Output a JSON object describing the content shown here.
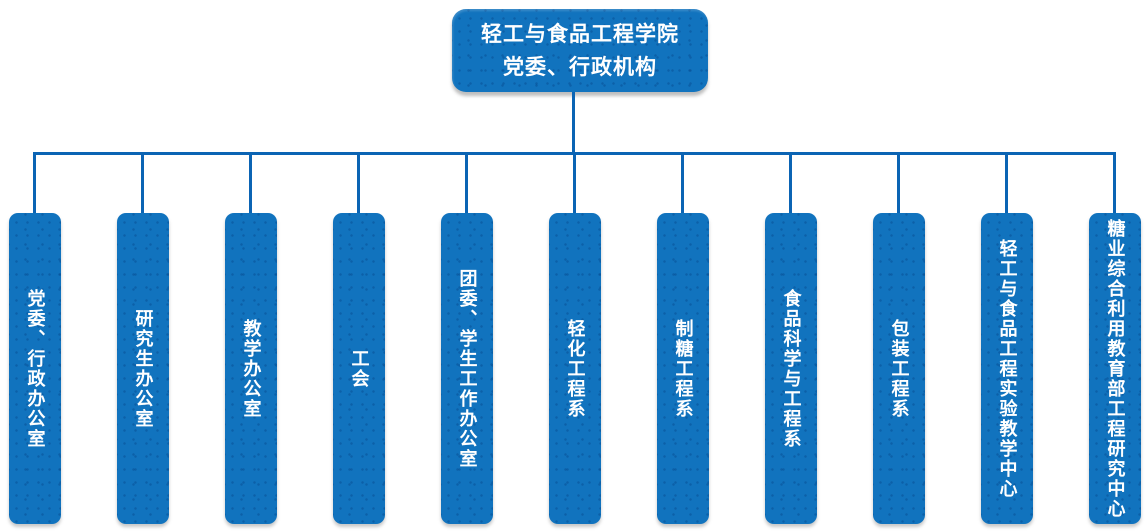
{
  "root": {
    "title_line1": "轻工与食品工程学院",
    "title_line2": "党委、行政机构"
  },
  "departments": [
    {
      "label": "党委、行政办公室"
    },
    {
      "label": "研究生办公室"
    },
    {
      "label": "教学办公室"
    },
    {
      "label": "工会"
    },
    {
      "label": "团委、学生工作办公室"
    },
    {
      "label": "轻化工程系"
    },
    {
      "label": "制糖工程系"
    },
    {
      "label": "食品科学与工程系"
    },
    {
      "label": "包装工程系"
    },
    {
      "label": "轻工与食品工程实验教学中心"
    },
    {
      "label": "糖业综合利用教育部工程研究中心"
    }
  ],
  "colors": {
    "box_fill": "#1173BE",
    "box_dot_overlay": "rgba(7,77,145,0.5)",
    "connector_line": "#0B64B4",
    "text": "#FFFFFF",
    "background": "#FFFFFF"
  }
}
